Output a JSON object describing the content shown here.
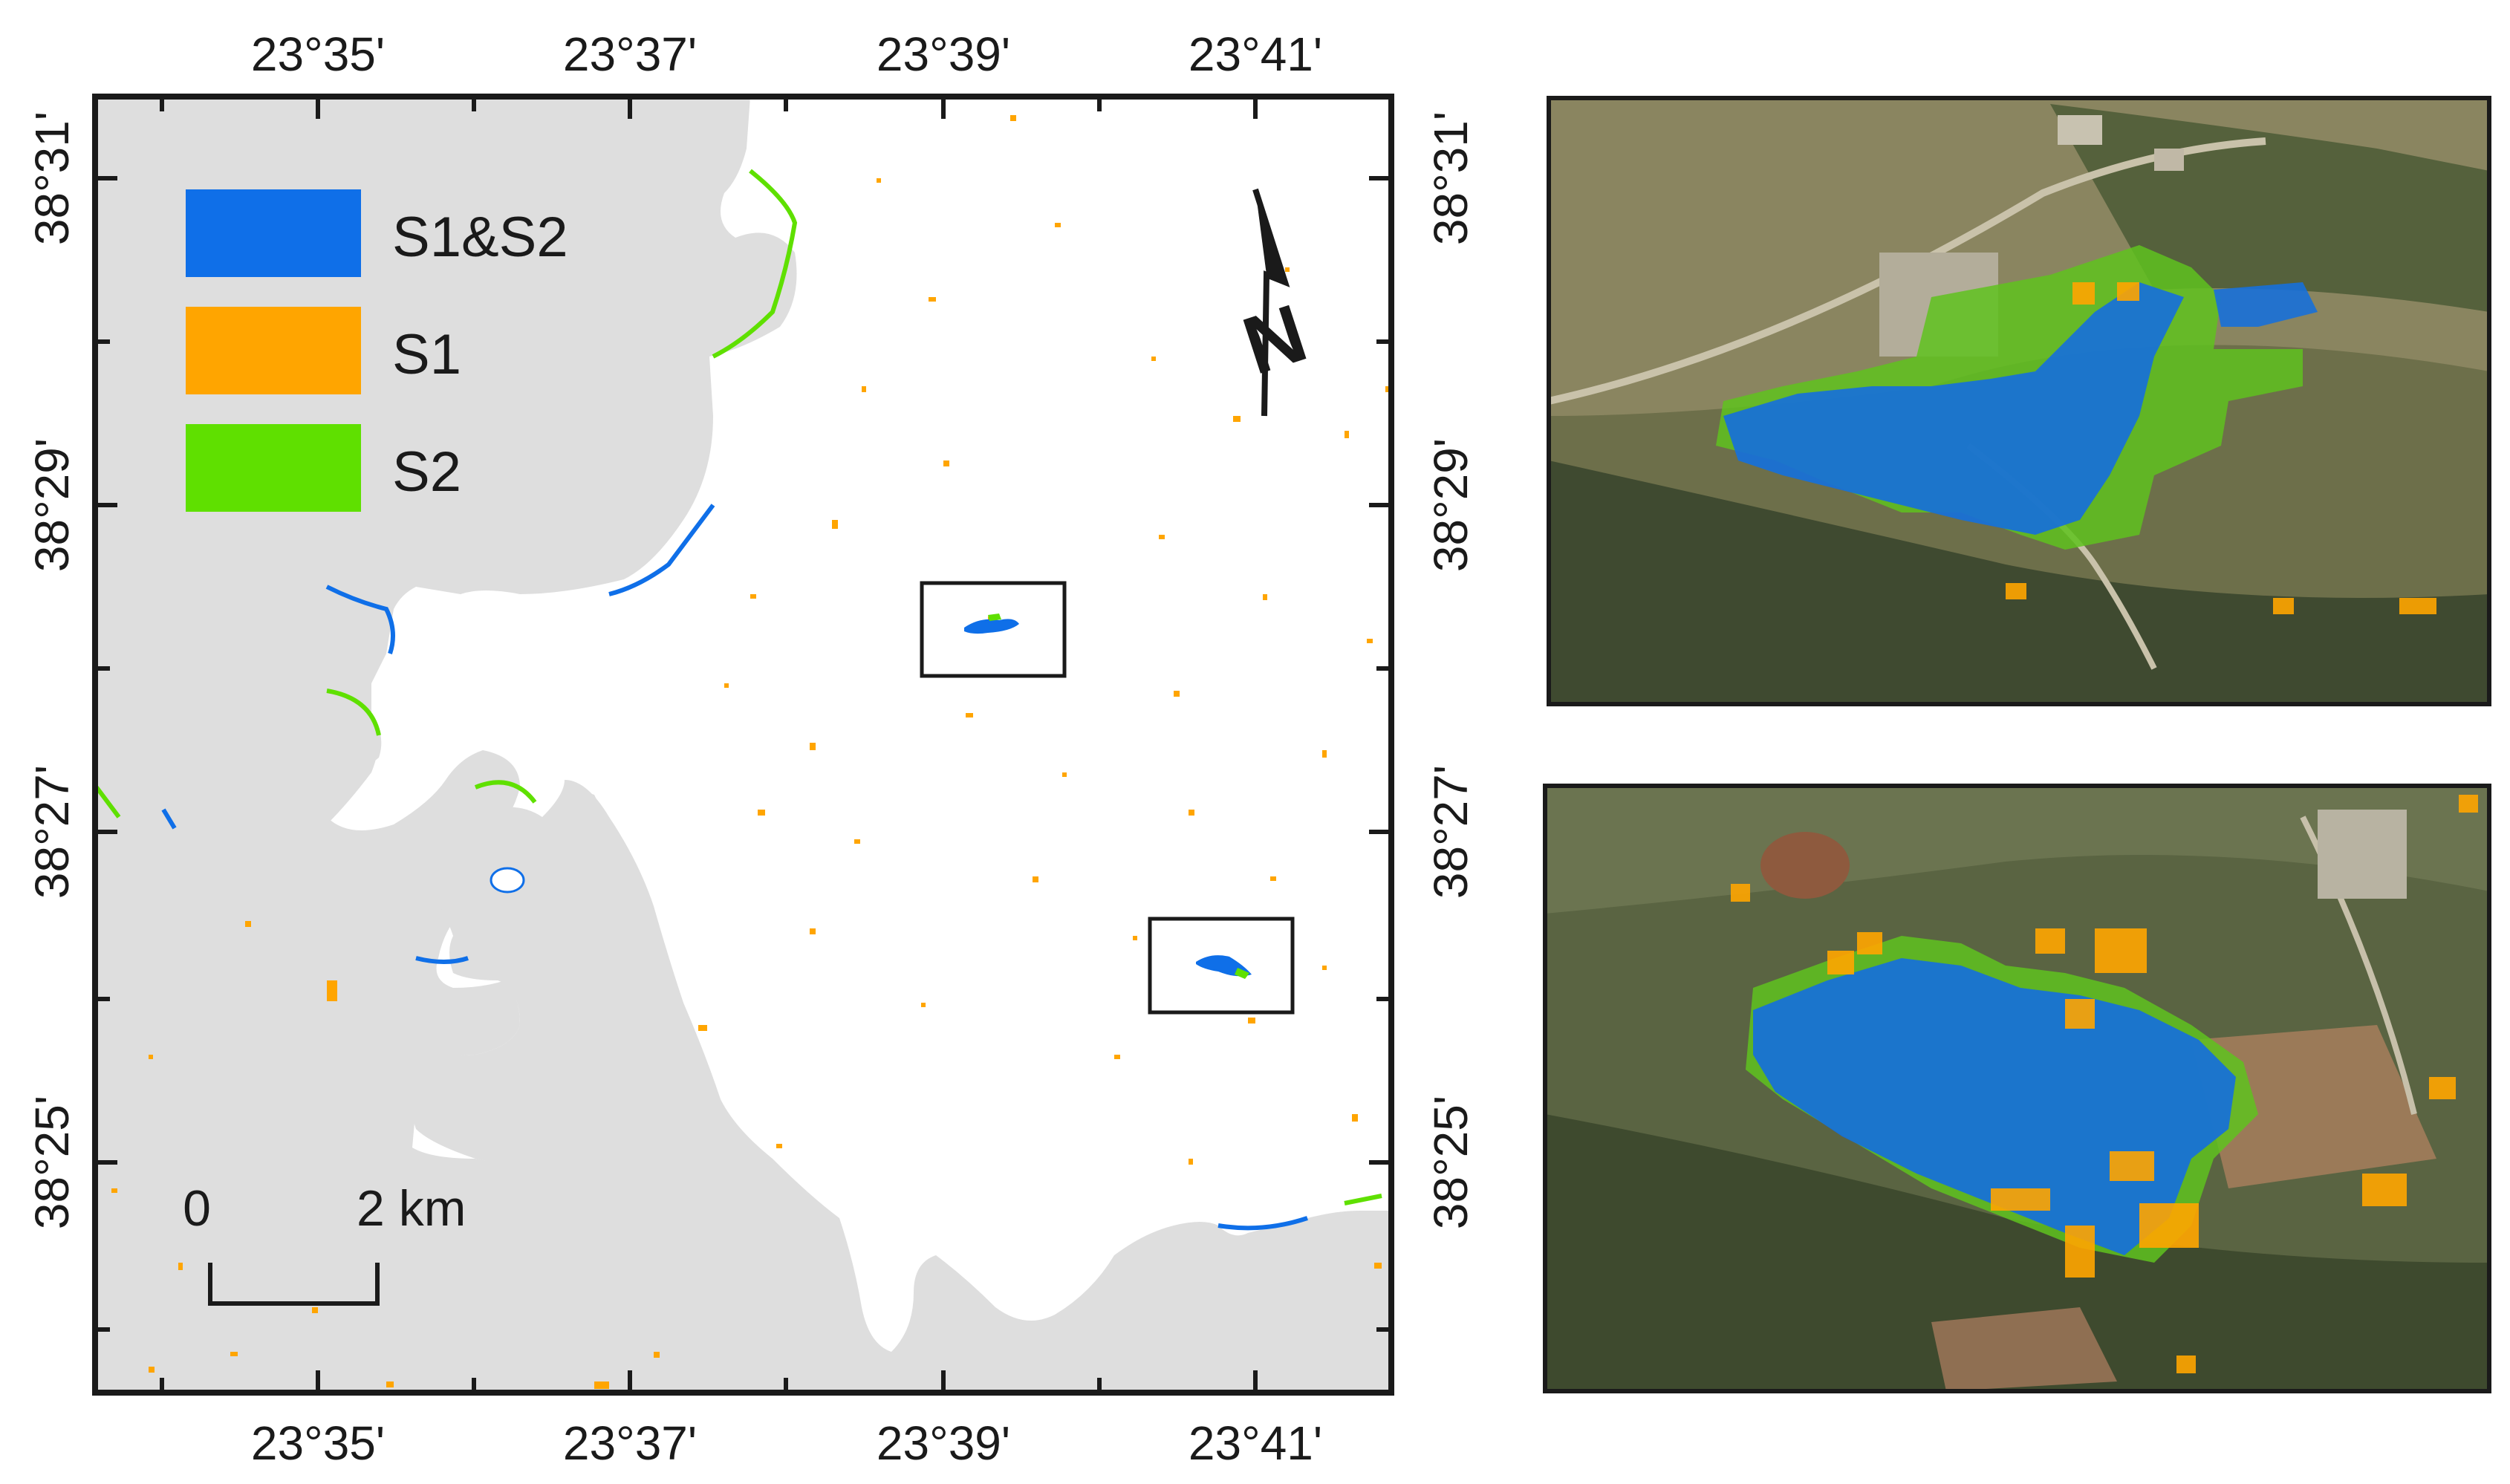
{
  "map": {
    "top_longitude_labels": [
      "23°35'",
      "23°37'",
      "23°39'",
      "23°41'"
    ],
    "bottom_longitude_labels": [
      "23°35'",
      "23°37'",
      "23°39'",
      "23°41'"
    ],
    "left_latitude_labels": [
      "38°31'",
      "38°29'",
      "38°27'",
      "38°25'"
    ],
    "right_latitude_labels": [
      "38°31'",
      "38°29'",
      "38°27'",
      "38°25'"
    ],
    "legend": [
      {
        "label": "S1&S2",
        "color": "#0f6fe8"
      },
      {
        "label": "S1",
        "color": "#ffa500"
      },
      {
        "label": "S2",
        "color": "#5fe000"
      }
    ],
    "north_arrow_letter": "N",
    "scale_bar": {
      "start_label": "0",
      "end_label": "2 km"
    },
    "colors": {
      "land": "#ffffff",
      "water": "#dedede",
      "frame": "#1a1a1a"
    }
  },
  "insets": [
    {
      "name": "top-inset",
      "description_hidden": true
    },
    {
      "name": "bottom-inset",
      "description_hidden": true
    }
  ]
}
